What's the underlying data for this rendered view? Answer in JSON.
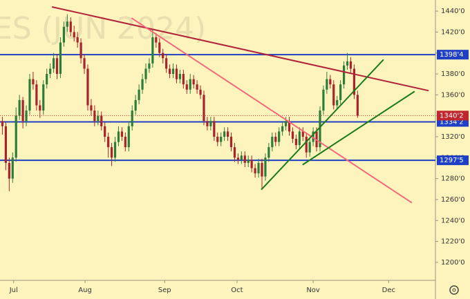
{
  "chart_data": {
    "type": "candlestick",
    "watermark": "ES (JUN 2024)",
    "up_color": "#2d7d3a",
    "down_color": "#a8232a",
    "candles": [
      [
        1335,
        1339,
        1322,
        1330
      ],
      [
        1330,
        1334,
        1288,
        1295
      ],
      [
        1295,
        1300,
        1268,
        1280
      ],
      [
        1280,
        1305,
        1276,
        1300
      ],
      [
        1300,
        1348,
        1296,
        1340
      ],
      [
        1340,
        1360,
        1336,
        1355
      ],
      [
        1355,
        1358,
        1328,
        1335
      ],
      [
        1335,
        1350,
        1330,
        1345
      ],
      [
        1345,
        1380,
        1341,
        1375
      ],
      [
        1375,
        1382,
        1365,
        1370
      ],
      [
        1370,
        1374,
        1345,
        1350
      ],
      [
        1350,
        1355,
        1338,
        1345
      ],
      [
        1345,
        1374,
        1341,
        1370
      ],
      [
        1370,
        1385,
        1366,
        1380
      ],
      [
        1380,
        1390,
        1376,
        1385
      ],
      [
        1385,
        1400,
        1381,
        1395
      ],
      [
        1395,
        1399,
        1375,
        1380
      ],
      [
        1380,
        1415,
        1376,
        1410
      ],
      [
        1410,
        1430,
        1406,
        1425
      ],
      [
        1425,
        1437,
        1420,
        1430
      ],
      [
        1430,
        1434,
        1416,
        1420
      ],
      [
        1420,
        1426,
        1411,
        1415
      ],
      [
        1415,
        1420,
        1405,
        1410
      ],
      [
        1410,
        1414,
        1390,
        1395
      ],
      [
        1395,
        1399,
        1380,
        1385
      ],
      [
        1385,
        1389,
        1345,
        1350
      ],
      [
        1350,
        1356,
        1340,
        1345
      ],
      [
        1345,
        1350,
        1330,
        1335
      ],
      [
        1335,
        1345,
        1331,
        1340
      ],
      [
        1340,
        1344,
        1326,
        1330
      ],
      [
        1330,
        1334,
        1315,
        1320
      ],
      [
        1320,
        1324,
        1300,
        1310
      ],
      [
        1310,
        1314,
        1292,
        1300
      ],
      [
        1300,
        1320,
        1296,
        1315
      ],
      [
        1315,
        1330,
        1311,
        1325
      ],
      [
        1325,
        1329,
        1316,
        1320
      ],
      [
        1320,
        1324,
        1306,
        1310
      ],
      [
        1310,
        1335,
        1306,
        1330
      ],
      [
        1330,
        1350,
        1326,
        1345
      ],
      [
        1345,
        1360,
        1341,
        1355
      ],
      [
        1355,
        1370,
        1351,
        1365
      ],
      [
        1365,
        1380,
        1361,
        1375
      ],
      [
        1375,
        1390,
        1371,
        1385
      ],
      [
        1385,
        1395,
        1381,
        1390
      ],
      [
        1390,
        1422,
        1386,
        1415
      ],
      [
        1415,
        1419,
        1405,
        1410
      ],
      [
        1410,
        1414,
        1396,
        1400
      ],
      [
        1400,
        1404,
        1390,
        1395
      ],
      [
        1395,
        1399,
        1381,
        1385
      ],
      [
        1385,
        1389,
        1376,
        1380
      ],
      [
        1380,
        1390,
        1376,
        1385
      ],
      [
        1385,
        1389,
        1371,
        1375
      ],
      [
        1375,
        1384,
        1371,
        1380
      ],
      [
        1380,
        1384,
        1366,
        1370
      ],
      [
        1370,
        1374,
        1361,
        1365
      ],
      [
        1365,
        1380,
        1361,
        1375
      ],
      [
        1375,
        1379,
        1366,
        1370
      ],
      [
        1370,
        1374,
        1361,
        1365
      ],
      [
        1365,
        1369,
        1356,
        1360
      ],
      [
        1360,
        1364,
        1331,
        1335
      ],
      [
        1335,
        1339,
        1326,
        1330
      ],
      [
        1330,
        1339,
        1326,
        1335
      ],
      [
        1335,
        1339,
        1316,
        1320
      ],
      [
        1320,
        1324,
        1311,
        1315
      ],
      [
        1315,
        1324,
        1311,
        1320
      ],
      [
        1320,
        1329,
        1316,
        1325
      ],
      [
        1325,
        1329,
        1316,
        1320
      ],
      [
        1320,
        1324,
        1306,
        1310
      ],
      [
        1310,
        1314,
        1296,
        1300
      ],
      [
        1300,
        1304,
        1294,
        1298
      ],
      [
        1298,
        1306,
        1294,
        1302
      ],
      [
        1302,
        1306,
        1291,
        1295
      ],
      [
        1295,
        1302,
        1291,
        1298
      ],
      [
        1298,
        1302,
        1286,
        1290
      ],
      [
        1290,
        1294,
        1281,
        1285
      ],
      [
        1285,
        1299,
        1281,
        1295
      ],
      [
        1295,
        1299,
        1270,
        1282
      ],
      [
        1282,
        1304,
        1278,
        1300
      ],
      [
        1300,
        1314,
        1296,
        1310
      ],
      [
        1310,
        1324,
        1306,
        1320
      ],
      [
        1320,
        1324,
        1311,
        1315
      ],
      [
        1315,
        1329,
        1311,
        1325
      ],
      [
        1325,
        1334,
        1321,
        1330
      ],
      [
        1330,
        1339,
        1326,
        1335
      ],
      [
        1335,
        1339,
        1321,
        1325
      ],
      [
        1325,
        1329,
        1314,
        1318
      ],
      [
        1318,
        1322,
        1308,
        1312
      ],
      [
        1312,
        1329,
        1308,
        1325
      ],
      [
        1325,
        1329,
        1316,
        1320
      ],
      [
        1320,
        1324,
        1300,
        1305
      ],
      [
        1305,
        1319,
        1301,
        1315
      ],
      [
        1315,
        1329,
        1311,
        1325
      ],
      [
        1325,
        1329,
        1306,
        1310
      ],
      [
        1310,
        1349,
        1306,
        1345
      ],
      [
        1345,
        1369,
        1341,
        1365
      ],
      [
        1365,
        1382,
        1361,
        1375
      ],
      [
        1375,
        1379,
        1366,
        1370
      ],
      [
        1370,
        1374,
        1346,
        1350
      ],
      [
        1350,
        1359,
        1346,
        1355
      ],
      [
        1355,
        1374,
        1351,
        1370
      ],
      [
        1370,
        1392,
        1366,
        1388
      ],
      [
        1388,
        1400,
        1384,
        1392
      ],
      [
        1392,
        1396,
        1381,
        1385
      ],
      [
        1385,
        1389,
        1356,
        1360
      ],
      [
        1360,
        1364,
        1338,
        1340.2
      ]
    ],
    "xlim": [
      -0.7,
      126.8
    ],
    "xticks": [
      {
        "value": 3.3,
        "label": "Jul"
      },
      {
        "value": 24.2,
        "label": "Aug"
      },
      {
        "value": 47.5,
        "label": "Sep"
      },
      {
        "value": 68.7,
        "label": "Oct"
      },
      {
        "value": 91,
        "label": "Nov"
      },
      {
        "value": 113.1,
        "label": "Dec"
      }
    ],
    "ylim": [
      1182.8,
      1450.6
    ],
    "yticks": [
      {
        "value": 1200,
        "label": "1200'0"
      },
      {
        "value": 1220,
        "label": "1220'0"
      },
      {
        "value": 1240,
        "label": "1240'0"
      },
      {
        "value": 1260,
        "label": "1260'0"
      },
      {
        "value": 1280,
        "label": "1280'0"
      },
      {
        "value": 1300,
        "label": "1300'0"
      },
      {
        "value": 1320,
        "label": "1320'0"
      },
      {
        "value": 1340,
        "label": "1340'0"
      },
      {
        "value": 1360,
        "label": "1360'0"
      },
      {
        "value": 1380,
        "label": "1380'0"
      },
      {
        "value": 1400,
        "label": "1400'0"
      },
      {
        "value": 1420,
        "label": "1420'0"
      },
      {
        "value": 1440,
        "label": "1440'0"
      }
    ],
    "hlines": [
      {
        "value": 1398.4,
        "label": "1398'4",
        "color": "#1f3fc4"
      },
      {
        "value": 1334.2,
        "label": "1334'2",
        "color": "#1f3fc4"
      },
      {
        "value": 1297.5,
        "label": "1297'5",
        "color": "#1f3fc4"
      }
    ],
    "last_price": {
      "value": 1340.2,
      "label": "1340'2",
      "color": "#c0262d"
    },
    "trendlines": [
      {
        "x": [
          14.5,
          124.8
        ],
        "y": [
          1444,
          1364
        ],
        "color": "#b0233a"
      },
      {
        "x": [
          37.8,
          119.9
        ],
        "y": [
          1433.4,
          1256.9
        ],
        "color": "#f26a7a"
      },
      {
        "x": [
          75.8,
          111.6
        ],
        "y": [
          1269.4,
          1393.7
        ],
        "color": "#1b7a1b"
      },
      {
        "x": [
          87.9,
          120.7
        ],
        "y": [
          1293.2,
          1363.3
        ],
        "color": "#1b7a1b"
      }
    ]
  }
}
